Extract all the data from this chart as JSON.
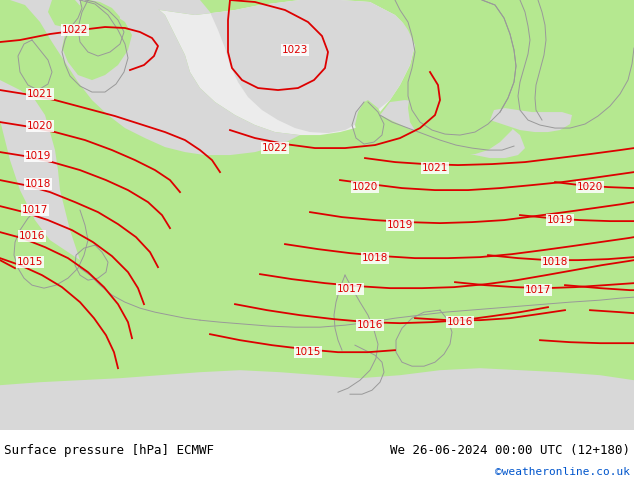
{
  "title_left": "Surface pressure [hPa] ECMWF",
  "title_right": "We 26-06-2024 00:00 UTC (12+180)",
  "title_right2": "©weatheronline.co.uk",
  "land_color": "#b5e890",
  "sea_color": "#d8d8d8",
  "high_pressure_color": "#e8e8e8",
  "contour_color": "#dd0000",
  "coast_color": "#999999",
  "fig_width": 6.34,
  "fig_height": 4.9,
  "dpi": 100
}
